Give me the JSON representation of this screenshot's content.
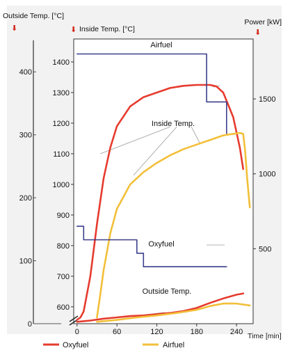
{
  "chart_data": {
    "type": "line",
    "axis_titles": {
      "outside_temp": "Outside Temp. [°C]",
      "inside_temp": "Inside Temp. [°C]",
      "power": "Power [kW]",
      "time": "Time [min]"
    },
    "x_ticks": [
      "0",
      "60",
      "120",
      "180",
      "240"
    ],
    "xlim": [
      -5,
      265
    ],
    "inside_temp_axis": {
      "ylim": [
        545,
        1475
      ],
      "ticks": [
        "600",
        "700",
        "800",
        "900",
        "1000",
        "1100",
        "1200",
        "1300",
        "1400"
      ]
    },
    "outside_temp_axis": {
      "ylim": [
        0,
        450
      ],
      "ticks": [
        "0",
        "100",
        "200",
        "300",
        "400"
      ]
    },
    "power_axis": {
      "ylim": [
        0,
        1900
      ],
      "ticks": [
        "500",
        "1000",
        "1500"
      ]
    },
    "legend_position": "bottom",
    "legend": [
      {
        "label": "Oxyfuel",
        "color": "#e63b2e"
      },
      {
        "label": "Airfuel",
        "color": "#f2bf38"
      }
    ],
    "annotations": [
      "Airfuel",
      "Inside Temp.",
      "Oxyfuel",
      "Outside Temp."
    ],
    "series": [
      {
        "name": "Inside Temp.",
        "color": "#e63b2e",
        "axis": "inside_temp",
        "x": [
          0,
          5,
          10,
          20,
          30,
          40,
          50,
          60,
          80,
          100,
          120,
          140,
          160,
          180,
          200,
          210,
          220,
          235,
          245,
          250
        ],
        "y": [
          558,
          565,
          585,
          700,
          870,
          1020,
          1120,
          1190,
          1255,
          1285,
          1300,
          1315,
          1322,
          1325,
          1325,
          1320,
          1300,
          1220,
          1120,
          1050
        ]
      },
      {
        "name": "Inside Temp.",
        "color": "#f2bf38",
        "axis": "inside_temp",
        "x": [
          30,
          35,
          40,
          50,
          60,
          80,
          100,
          120,
          140,
          160,
          180,
          200,
          220,
          235,
          245,
          250,
          253,
          256,
          260
        ],
        "y": [
          565,
          640,
          720,
          840,
          920,
          1000,
          1040,
          1070,
          1095,
          1115,
          1130,
          1145,
          1160,
          1165,
          1168,
          1165,
          1110,
          1020,
          925
        ]
      },
      {
        "name": "Outside Temp.",
        "color": "#e63b2e",
        "axis": "outside_temp",
        "x": [
          0,
          20,
          40,
          60,
          80,
          100,
          120,
          140,
          160,
          180,
          200,
          220,
          240,
          250
        ],
        "y": [
          3,
          5,
          8,
          10,
          12,
          13,
          15,
          17,
          20,
          25,
          33,
          40,
          46,
          48
        ]
      },
      {
        "name": "Outside Temp.",
        "color": "#f2bf38",
        "axis": "outside_temp",
        "x": [
          30,
          60,
          90,
          120,
          150,
          180,
          200,
          220,
          240,
          260
        ],
        "y": [
          3,
          6,
          10,
          13,
          17,
          22,
          28,
          32,
          32,
          29
        ]
      },
      {
        "name": "Airfuel",
        "color": "#3c3f8c",
        "axis": "power",
        "step": true,
        "x": [
          0,
          195,
          195,
          225,
          225
        ],
        "y": [
          1800,
          1800,
          1480,
          1480,
          1270
        ]
      },
      {
        "name": "Oxyfuel",
        "color": "#3c3f8c",
        "axis": "power",
        "step": true,
        "x": [
          0,
          10,
          10,
          90,
          90,
          100,
          100,
          225
        ],
        "y": [
          650,
          650,
          560,
          560,
          470,
          470,
          380,
          380
        ]
      }
    ]
  }
}
